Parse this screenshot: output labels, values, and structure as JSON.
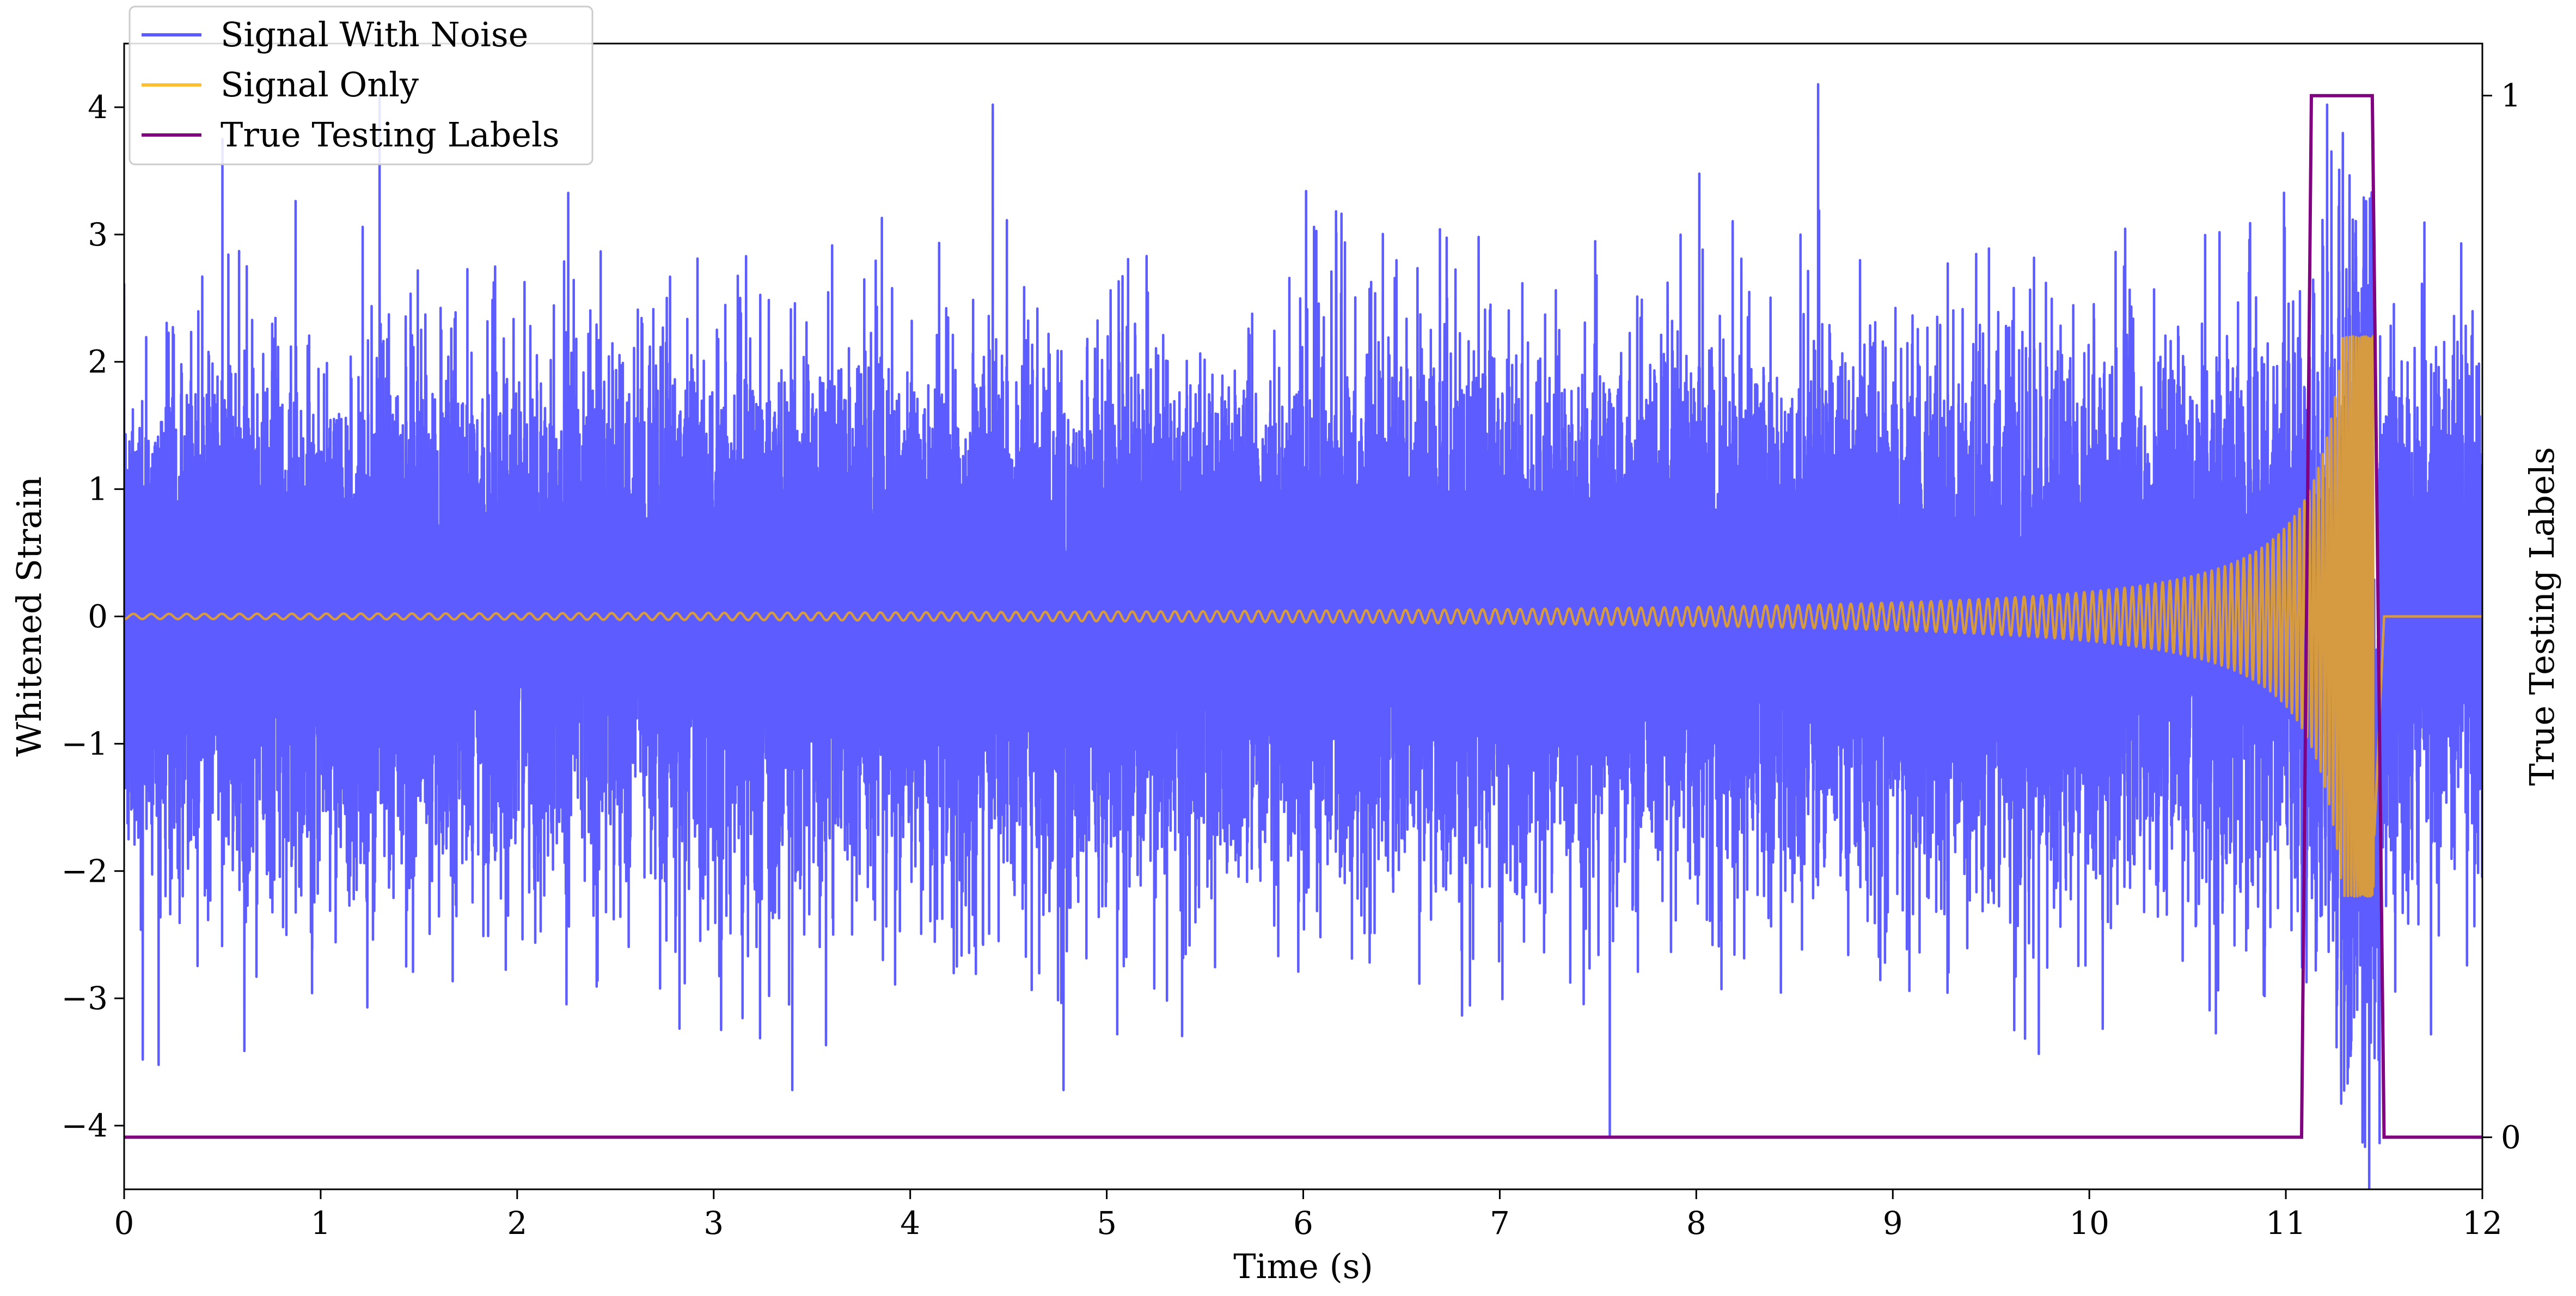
{
  "chart_data": {
    "type": "line",
    "xlabel": "Time (s)",
    "ylabel": "Whitened Strain",
    "y2label": "True Testing Labels",
    "xlim": [
      0,
      12
    ],
    "ylim": [
      -4.5,
      4.5
    ],
    "y2lim": [
      -0.05,
      1.05
    ],
    "x_ticks": [
      "0",
      "1",
      "2",
      "3",
      "4",
      "5",
      "6",
      "7",
      "8",
      "9",
      "10",
      "11",
      "12"
    ],
    "y_ticks": [
      "4",
      "3",
      "2",
      "1",
      "0",
      "−1",
      "−2",
      "−3",
      "−4"
    ],
    "y2_ticks": [
      "1",
      "0"
    ],
    "grid": false,
    "legend_position": "top-left",
    "sample_rate_hz": 2048,
    "series": [
      {
        "name": "Signal With Noise",
        "color": "#3333ff",
        "axis": "left",
        "noise_std": 0.95,
        "peaks": [
          {
            "x": 0.5,
            "y": 3.75
          },
          {
            "x": 1.3,
            "y": 4.08
          },
          {
            "x": 3.4,
            "y": -3.72
          },
          {
            "x": 4.42,
            "y": 4.02
          },
          {
            "x": 4.78,
            "y": -3.72
          },
          {
            "x": 7.56,
            "y": -4.08
          },
          {
            "x": 8.62,
            "y": 4.18
          },
          {
            "x": 11.48,
            "y": 2.2
          }
        ]
      },
      {
        "name": "Signal Only",
        "color": "#ffb000",
        "axis": "left",
        "chirp": {
          "start_time": 0,
          "merger_time": 11.45,
          "end_time": 11.5,
          "start_frequency_hz": 11,
          "max_amplitude": 2.2,
          "amplitude_at_start": 0.02
        }
      },
      {
        "name": "True Testing Labels",
        "color": "#800080",
        "axis": "right",
        "x": [
          0,
          11.08,
          11.13,
          11.44,
          11.5,
          12
        ],
        "y": [
          0,
          0,
          1,
          1,
          0,
          0
        ]
      }
    ]
  }
}
